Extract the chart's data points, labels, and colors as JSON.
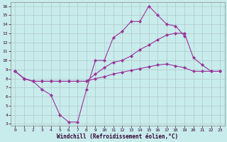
{
  "xlabel": "Windchill (Refroidissement éolien,°C)",
  "background_color": "#c8ecec",
  "grid_color": "#b0c8c8",
  "line_color": "#993399",
  "x": [
    0,
    1,
    2,
    3,
    4,
    5,
    6,
    7,
    8,
    9,
    10,
    11,
    12,
    13,
    14,
    15,
    16,
    17,
    18,
    19,
    20,
    21,
    22,
    23
  ],
  "line1": [
    8.8,
    8.0,
    7.7,
    6.8,
    6.2,
    4.0,
    3.2,
    3.2,
    6.8,
    10.0,
    10.0,
    12.5,
    13.2,
    14.3,
    14.3,
    16.0,
    15.0,
    14.0,
    13.8,
    12.7,
    null,
    null,
    null,
    null
  ],
  "line2": [
    8.8,
    8.0,
    7.7,
    7.7,
    7.7,
    7.7,
    7.7,
    7.7,
    7.7,
    8.5,
    9.2,
    9.8,
    10.0,
    10.5,
    11.2,
    11.7,
    12.3,
    12.8,
    13.0,
    13.0,
    10.3,
    9.5,
    8.8,
    8.8
  ],
  "line3": [
    8.8,
    8.0,
    7.7,
    7.7,
    7.7,
    7.7,
    7.7,
    7.7,
    7.7,
    8.0,
    8.2,
    8.5,
    8.7,
    8.9,
    9.1,
    9.3,
    9.5,
    9.6,
    9.4,
    9.2,
    8.8,
    8.8,
    8.8,
    8.8
  ],
  "ylim": [
    3,
    16
  ],
  "xlim": [
    0,
    23
  ],
  "yticks": [
    3,
    4,
    5,
    6,
    7,
    8,
    9,
    10,
    11,
    12,
    13,
    14,
    15,
    16
  ],
  "xticks": [
    0,
    1,
    2,
    3,
    4,
    5,
    6,
    7,
    8,
    9,
    10,
    11,
    12,
    13,
    14,
    15,
    16,
    17,
    18,
    19,
    20,
    21,
    22,
    23
  ]
}
